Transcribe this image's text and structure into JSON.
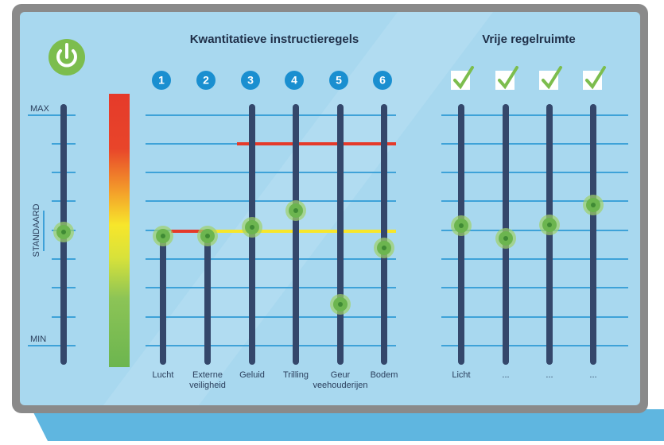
{
  "titles": {
    "quantitative": "Kwantitatieve instructieregels",
    "free": "Vrije regelruimte"
  },
  "scale": {
    "max": "MAX",
    "min": "MIN",
    "standard": "STANDAARD"
  },
  "numbers": [
    "1",
    "2",
    "3",
    "4",
    "5",
    "6"
  ],
  "labels": [
    [
      "Lucht"
    ],
    [
      "Externe",
      "veiligheid"
    ],
    [
      "Geluid"
    ],
    [
      "Trilling"
    ],
    [
      "Geur",
      "veehouderijen"
    ],
    [
      "Bodem"
    ]
  ],
  "free_labels": [
    [
      "Licht"
    ],
    [
      "..."
    ],
    [
      "..."
    ],
    [
      "..."
    ]
  ]
}
